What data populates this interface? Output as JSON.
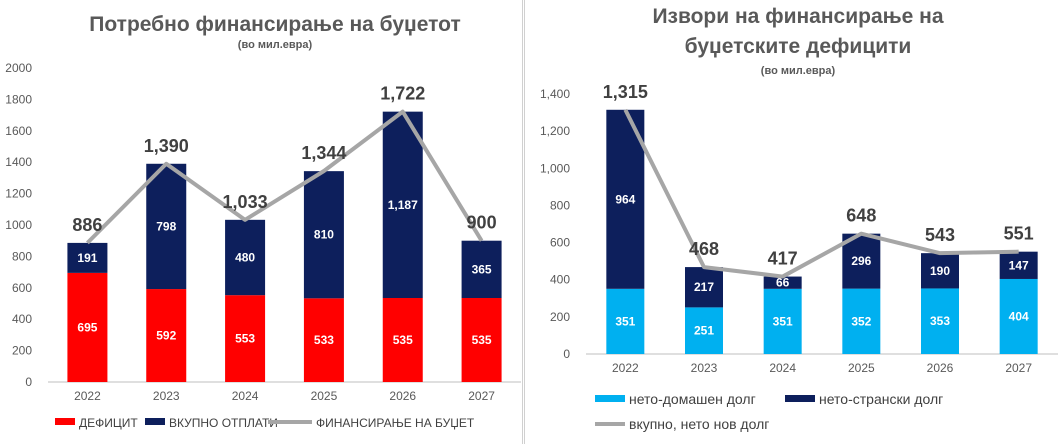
{
  "chart_data": [
    {
      "type": "bar",
      "stacked": true,
      "title": "Потребно финансирање на буџетот",
      "subtitle": "(во мил.евра)",
      "categories": [
        "2022",
        "2023",
        "2024",
        "2025",
        "2026",
        "2027"
      ],
      "series": [
        {
          "name": "ДЕФИЦИТ",
          "kind": "bar",
          "color": "#ff0000",
          "values": [
            695,
            592,
            553,
            533,
            535,
            535
          ]
        },
        {
          "name": "ВКУПНО ОТПЛАТИ",
          "kind": "bar",
          "color": "#0d1f5c",
          "values": [
            191,
            798,
            480,
            810,
            1187,
            365
          ]
        },
        {
          "name": "ФИНАНСИРАЊЕ НА БУЏЕТ",
          "kind": "line",
          "color": "#a6a6a6",
          "values": [
            886,
            1390,
            1033,
            1344,
            1722,
            900
          ]
        }
      ],
      "total_labels": [
        "886",
        "1,390",
        "1,033",
        "1,344",
        "1,722",
        "900"
      ],
      "segment_labels": [
        [
          "695",
          "592",
          "553",
          "533",
          "535",
          "535"
        ],
        [
          "191",
          "798",
          "480",
          "810",
          "1,187",
          "365"
        ]
      ],
      "yticks": [
        "0",
        "200",
        "400",
        "600",
        "800",
        "1000",
        "1200",
        "1400",
        "1600",
        "1800",
        "2000"
      ],
      "ylim": [
        0,
        2000
      ],
      "legend_position": "bottom"
    },
    {
      "type": "bar",
      "stacked": true,
      "title": "Извори на финансирање на",
      "title_line2": "буџетските дефицити",
      "subtitle": "(во мил.евра)",
      "categories": [
        "2022",
        "2023",
        "2024",
        "2025",
        "2026",
        "2027"
      ],
      "series": [
        {
          "name": "нето-домашен долг",
          "kind": "bar",
          "color": "#00b0f0",
          "values": [
            351,
            251,
            351,
            352,
            353,
            404
          ]
        },
        {
          "name": "нето-странски долг",
          "kind": "bar",
          "color": "#0d1f5c",
          "values": [
            964,
            217,
            66,
            296,
            190,
            147
          ]
        },
        {
          "name": "вкупно, нето нов долг",
          "kind": "line",
          "color": "#a6a6a6",
          "values": [
            1315,
            468,
            417,
            648,
            543,
            551
          ]
        }
      ],
      "total_labels": [
        "1,315",
        "468",
        "417",
        "648",
        "543",
        "551"
      ],
      "segment_labels": [
        [
          "351",
          "251",
          "351",
          "352",
          "353",
          "404"
        ],
        [
          "964",
          "217",
          "66",
          "296",
          "190",
          "147"
        ]
      ],
      "yticks": [
        "0",
        "200",
        "400",
        "600",
        "800",
        "1,000",
        "1,200",
        "1,400"
      ],
      "ylim": [
        0,
        1400
      ],
      "legend_position": "bottom"
    }
  ]
}
